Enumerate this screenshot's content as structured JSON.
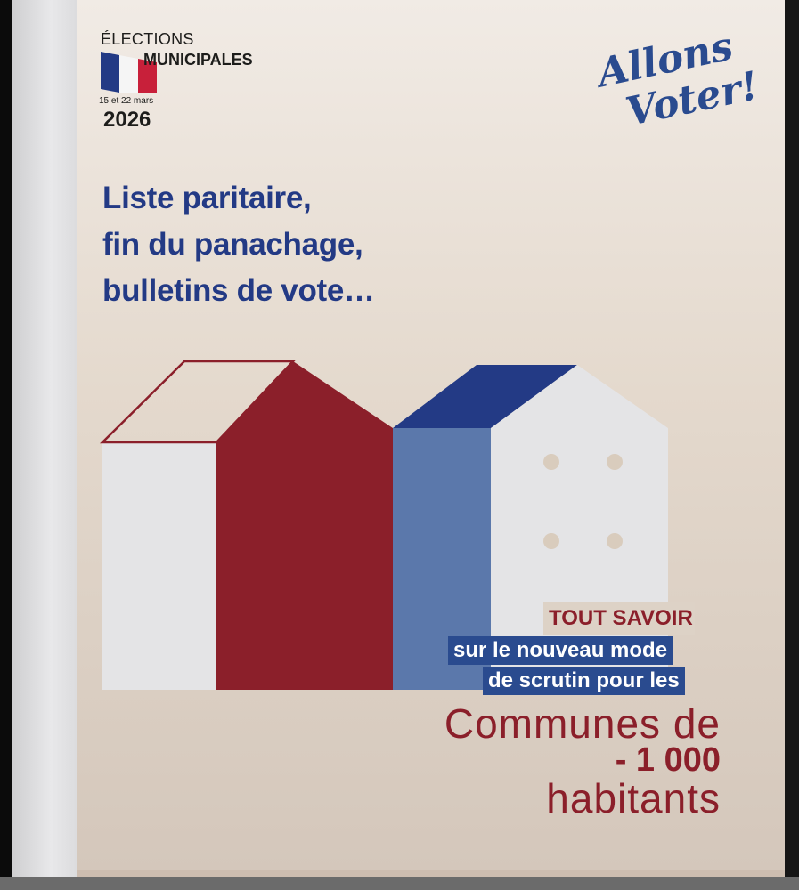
{
  "header": {
    "elections": "ÉLECTIONS",
    "municipales": "MUNICIPALES",
    "dates": "15 et 22 mars",
    "year": "2026"
  },
  "logo": {
    "line1": "Allons",
    "line2": "Voter!"
  },
  "headline": [
    "Liste paritaire,",
    "fin du panachage,",
    "bulletins de vote…"
  ],
  "callout": {
    "tout_savoir": "TOUT SAVOIR",
    "line1": "sur le nouveau mode",
    "line2": "de scrutin pour les",
    "communes": "Communes de",
    "threshold": "- 1 000",
    "habitants": "habitants"
  },
  "colors": {
    "blue": "#2a4b8f",
    "red": "#8b1f2a",
    "light_blue": "#5b78ab",
    "house_white": "#e4e4e6"
  }
}
